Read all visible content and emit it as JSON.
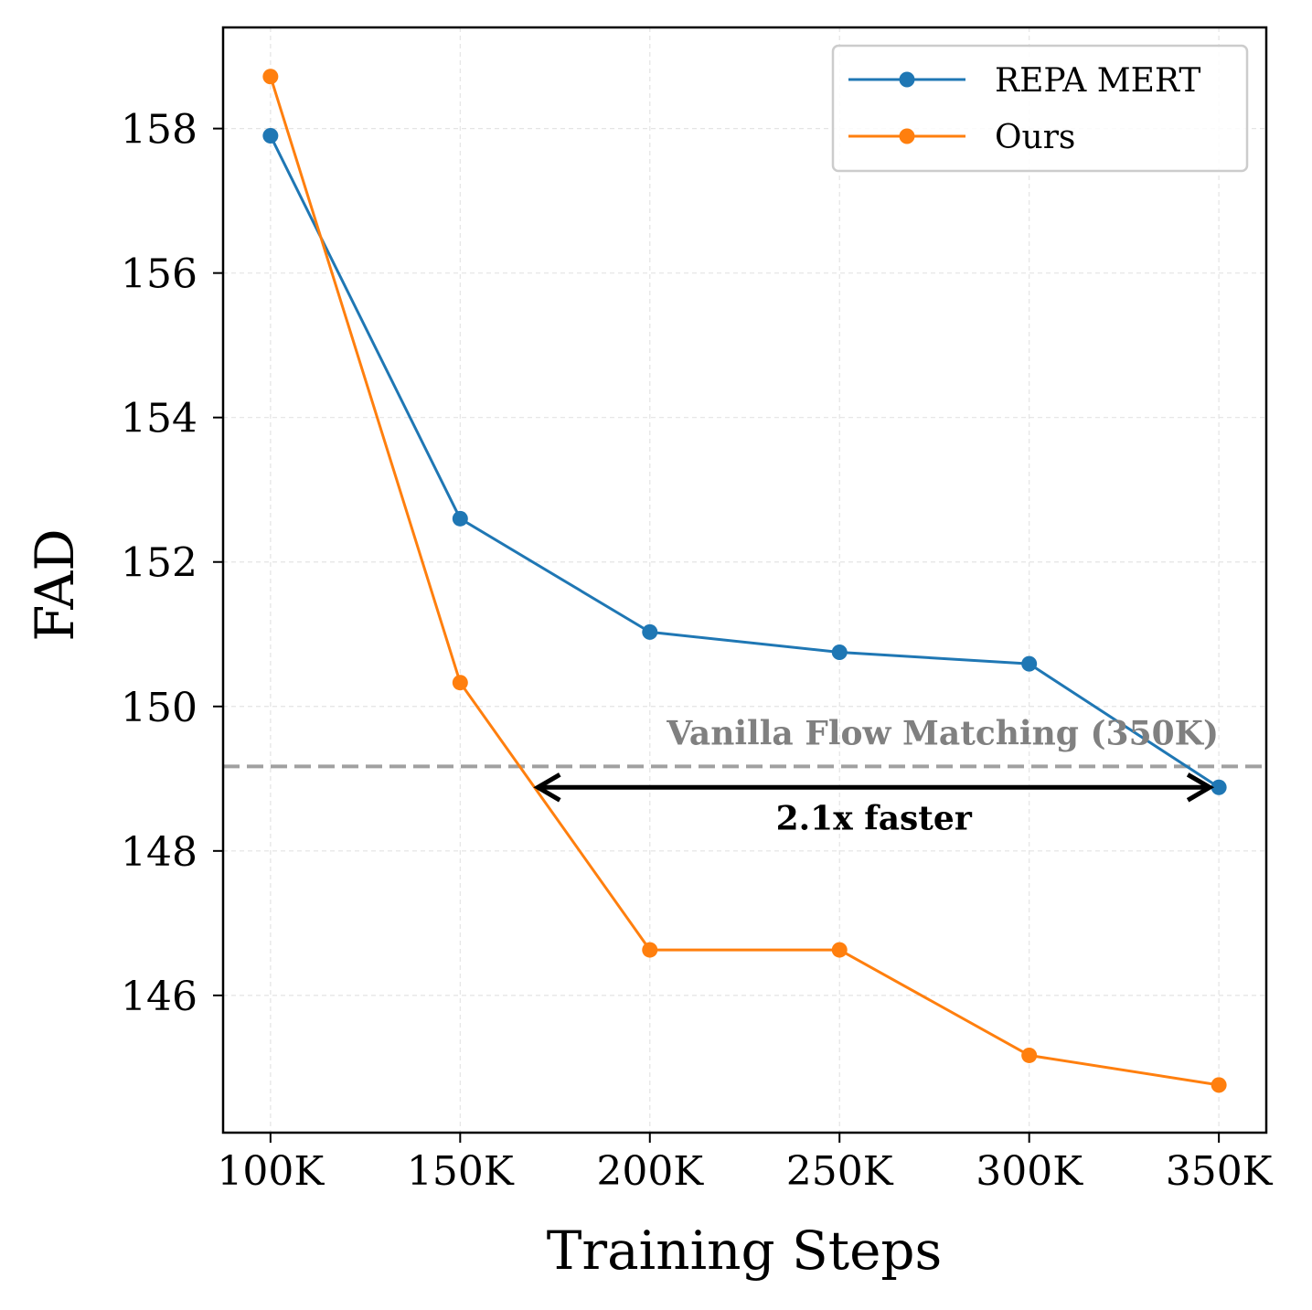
{
  "chart_data": {
    "type": "line",
    "title": "",
    "xlabel": "Training Steps",
    "ylabel": "FAD",
    "x": [
      100000,
      150000,
      200000,
      250000,
      300000,
      350000
    ],
    "x_tick_labels": [
      "100K",
      "150K",
      "200K",
      "250K",
      "300K",
      "350K"
    ],
    "y_ticks": [
      146,
      148,
      150,
      152,
      154,
      156,
      158
    ],
    "xlim": [
      87500,
      362500
    ],
    "ylim": [
      144.1,
      159.4
    ],
    "grid": true,
    "legend_position": "top-right",
    "series": [
      {
        "name": "REPA MERT",
        "color": "#1f77b4",
        "values": [
          157.9,
          152.6,
          151.03,
          150.75,
          150.59,
          148.88
        ]
      },
      {
        "name": "Ours",
        "color": "#ff7f0e",
        "values": [
          158.72,
          150.33,
          146.63,
          146.63,
          145.17,
          144.76
        ]
      }
    ],
    "reference_line": {
      "label": "Vanilla Flow Matching (350K)",
      "y": 149.17,
      "color": "#a0a0a0"
    },
    "annotation": {
      "label": "2.1x faster",
      "x_from": 170000,
      "x_to": 350000,
      "y": 148.88
    }
  }
}
